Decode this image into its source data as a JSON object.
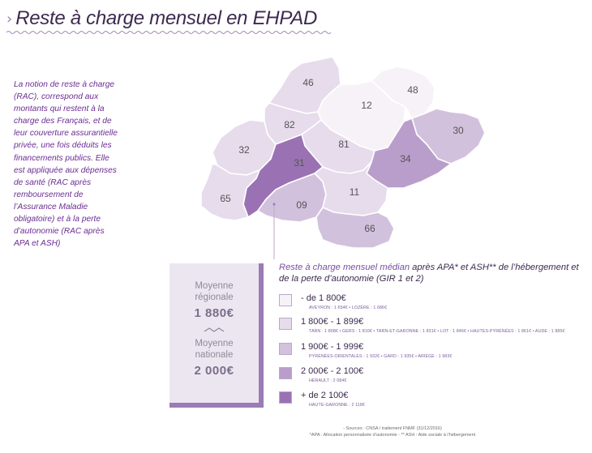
{
  "title": "Reste à charge mensuel en EHPAD",
  "intro_text": "La notion de reste à charge (RAC), correspond aux montants qui restent à la charge des Français, et de leur couverture assurantielle privée, une fois déduits les financements publics. Elle est appliquée aux dépenses de santé (RAC après remboursement de l’Assurance Maladie obligatoire) et à la perte d’autonomie (RAC après APA et ASH)",
  "averages": {
    "regional_label": "Moyenne régionale",
    "regional_value": "1 880€",
    "national_label": "Moyenne nationale",
    "national_value": "2 000€"
  },
  "legend": {
    "title_strong": "Reste à charge mensuel médian",
    "title_rest": " après APA* et ASH** de l’hébergement et de la perte d’autonomie (GIR 1 et 2)",
    "classes": [
      {
        "range": "- de 1 800€",
        "details": "AVEYRON : 1 654€ • LOZÈRE : 1 686€",
        "color": "#f6f2f8"
      },
      {
        "range": "1 800€ - 1 899€",
        "details": "TARN : 1 808€ • GERS : 1 810€ • TARN-ET-GARONNE : 1 831€ • LOT : 1 846€ • HAUTES-PYRÉNÉES : 1 861€ • AUDE : 1 885€",
        "color": "#e6dcec"
      },
      {
        "range": "1 900€ - 1 999€",
        "details": "PYRÉNÉES-ORIENTALES : 1 932€ • GARD : 1 935€ • ARIÈGE : 1 983€",
        "color": "#d2c1dd"
      },
      {
        "range": "2 000€ - 2 100€",
        "details": "HÉRAULT : 2 084€",
        "color": "#b99ecb"
      },
      {
        "range": "+ de 2 100€",
        "details": "HAUTE-GARONNE : 2 118€",
        "color": "#9a72b3"
      }
    ]
  },
  "departments": [
    {
      "code": "46",
      "class": 1
    },
    {
      "code": "12",
      "class": 0
    },
    {
      "code": "48",
      "class": 0
    },
    {
      "code": "82",
      "class": 1
    },
    {
      "code": "32",
      "class": 1
    },
    {
      "code": "81",
      "class": 1
    },
    {
      "code": "30",
      "class": 2
    },
    {
      "code": "34",
      "class": 3
    },
    {
      "code": "31",
      "class": 4
    },
    {
      "code": "65",
      "class": 1
    },
    {
      "code": "09",
      "class": 2
    },
    {
      "code": "11",
      "class": 1
    },
    {
      "code": "66",
      "class": 2
    }
  ],
  "sources": {
    "line1": "- Sources : CNSA / traitement FNMF (31/12/2016)",
    "line2": "*APA : Allocation personnalisée d’autonomie - ** ASH : Aide sociale à l’hébergement"
  }
}
